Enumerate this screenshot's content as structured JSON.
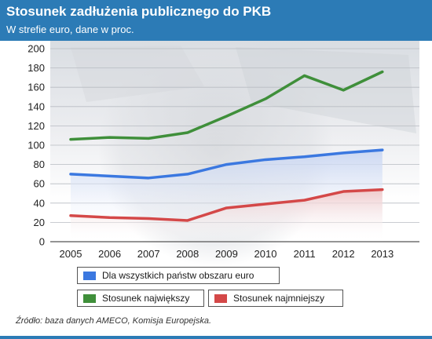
{
  "header": {
    "title": "Stosunek zadłużenia publicznego do PKB",
    "subtitle": "W strefie euro, dane w proc."
  },
  "colors": {
    "header_bg": "#2c7bb6",
    "all_countries": "#3b78e0",
    "largest": "#3f8f3a",
    "smallest": "#d44848"
  },
  "chart_data": {
    "type": "line",
    "title": "Stosunek zadłużenia publicznego do PKB",
    "subtitle": "W strefie euro, dane w proc.",
    "x": [
      "2005",
      "2006",
      "2007",
      "2008",
      "2009",
      "2010",
      "2011",
      "2012",
      "2013"
    ],
    "yticks": [
      "0",
      "20",
      "40",
      "60",
      "80",
      "100",
      "120",
      "140",
      "160",
      "180",
      "200"
    ],
    "ylim": [
      0,
      200
    ],
    "grid": true,
    "legend_position": "bottom",
    "series": [
      {
        "name": "Dla wszystkich państw obszaru euro",
        "color": "#3b78e0",
        "values": [
          70,
          68,
          66,
          70,
          80,
          85,
          88,
          92,
          95
        ]
      },
      {
        "name": "Stosunek największy",
        "color": "#3f8f3a",
        "values": [
          106,
          108,
          107,
          113,
          130,
          148,
          172,
          157,
          176
        ]
      },
      {
        "name": "Stosunek najmniejszy",
        "color": "#d44848",
        "values": [
          27,
          25,
          24,
          22,
          35,
          39,
          43,
          52,
          54
        ]
      }
    ]
  },
  "footnote": "Źródło: baza danych AMECO, Komisja Europejska."
}
